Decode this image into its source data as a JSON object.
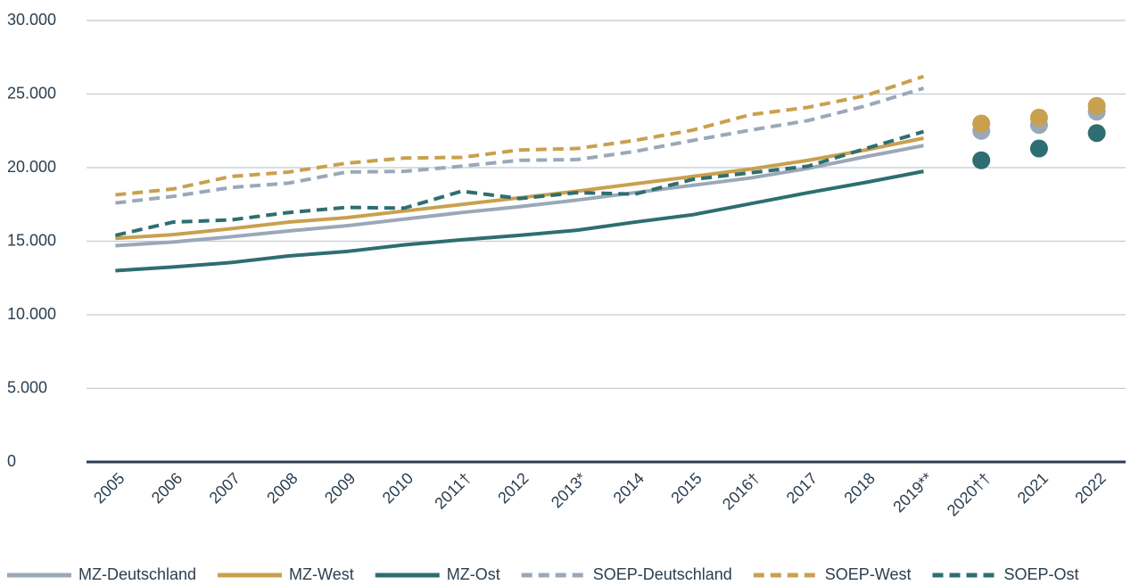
{
  "chart_data": {
    "type": "line",
    "categories": [
      "2005",
      "2006",
      "2007",
      "2008",
      "2009",
      "2010",
      "2011†",
      "2012",
      "2013*",
      "2014",
      "2015",
      "2016†",
      "2017",
      "2018",
      "2019**",
      "2020††",
      "2021",
      "2022"
    ],
    "ylim": [
      0,
      30000
    ],
    "yticks": [
      0,
      {
        "value": 5000,
        "label": "5.000"
      },
      {
        "value": 10000,
        "label": "10.000"
      },
      {
        "value": 15000,
        "label": "15.000"
      },
      {
        "value": 20000,
        "label": "20.000"
      },
      {
        "value": 25000,
        "label": "25.000"
      },
      {
        "value": 30000,
        "label": "30.000"
      }
    ],
    "grid": true,
    "legend": "bottom",
    "series": [
      {
        "name": "MZ-Deutschland",
        "color": "#9aa8b8",
        "dashed": false,
        "values": [
          14700,
          14950,
          15300,
          15700,
          16050,
          16500,
          16950,
          17350,
          17800,
          18300,
          18800,
          19300,
          19950,
          20750,
          21500,
          null,
          null,
          null
        ],
        "dots": [
          null,
          null,
          null,
          null,
          null,
          null,
          null,
          null,
          null,
          null,
          null,
          null,
          null,
          null,
          null,
          22500,
          22900,
          23800
        ]
      },
      {
        "name": "MZ-West",
        "color": "#c9a04e",
        "dashed": false,
        "values": [
          15200,
          15450,
          15850,
          16300,
          16600,
          17050,
          17500,
          17950,
          18400,
          18900,
          19400,
          19900,
          20500,
          21200,
          22000,
          null,
          null,
          null
        ],
        "dots": [
          null,
          null,
          null,
          null,
          null,
          null,
          null,
          null,
          null,
          null,
          null,
          null,
          null,
          null,
          null,
          23000,
          23400,
          24200
        ]
      },
      {
        "name": "MZ-Ost",
        "color": "#2e6e70",
        "dashed": false,
        "values": [
          13000,
          13250,
          13550,
          14000,
          14300,
          14750,
          15100,
          15400,
          15750,
          16300,
          16800,
          17550,
          18300,
          19000,
          19750,
          null,
          null,
          null
        ],
        "dots": [
          null,
          null,
          null,
          null,
          null,
          null,
          null,
          null,
          null,
          null,
          null,
          null,
          null,
          null,
          null,
          20500,
          21300,
          22350
        ]
      },
      {
        "name": "SOEP-Deutschland",
        "color": "#9aa8b8",
        "dashed": true,
        "values": [
          17600,
          18050,
          18650,
          18950,
          19700,
          19750,
          20100,
          20500,
          20550,
          21100,
          21850,
          22550,
          23200,
          24200,
          25400,
          null,
          null,
          null
        ]
      },
      {
        "name": "SOEP-West",
        "color": "#c9a04e",
        "dashed": true,
        "values": [
          18150,
          18550,
          19400,
          19700,
          20300,
          20650,
          20700,
          21200,
          21300,
          21850,
          22550,
          23600,
          24100,
          24900,
          26200,
          null,
          null,
          null
        ]
      },
      {
        "name": "SOEP-Ost",
        "color": "#2e6e70",
        "dashed": true,
        "values": [
          15400,
          16300,
          16450,
          16950,
          17300,
          17250,
          18400,
          17900,
          18300,
          18200,
          19200,
          19650,
          20100,
          21300,
          22450,
          null,
          null,
          null
        ]
      }
    ]
  }
}
